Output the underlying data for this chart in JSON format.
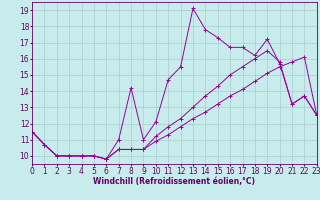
{
  "xlabel": "Windchill (Refroidissement éolien,°C)",
  "bg_color": "#c8ecec",
  "line_color": "#990099",
  "grid_color": "#aacccc",
  "axis_color": "#660066",
  "xlim": [
    0,
    23
  ],
  "ylim": [
    9.5,
    19.5
  ],
  "xticks": [
    0,
    1,
    2,
    3,
    4,
    5,
    6,
    7,
    8,
    9,
    10,
    11,
    12,
    13,
    14,
    15,
    16,
    17,
    18,
    19,
    20,
    21,
    22,
    23
  ],
  "yticks": [
    10,
    11,
    12,
    13,
    14,
    15,
    16,
    17,
    18,
    19
  ],
  "series1_x": [
    0,
    1,
    2,
    3,
    4,
    5,
    6,
    7,
    8,
    9,
    10,
    11,
    12,
    13,
    14,
    15,
    16,
    17,
    18,
    19,
    20,
    21,
    22,
    23
  ],
  "series1_y": [
    11.5,
    10.7,
    10.0,
    10.0,
    10.0,
    10.0,
    9.8,
    11.0,
    14.2,
    11.0,
    12.1,
    14.7,
    15.5,
    19.1,
    17.8,
    17.3,
    16.7,
    16.7,
    16.2,
    17.2,
    15.7,
    13.2,
    13.7,
    12.5
  ],
  "series2_x": [
    0,
    1,
    2,
    3,
    4,
    5,
    6,
    7,
    8,
    9,
    10,
    11,
    12,
    13,
    14,
    15,
    16,
    17,
    18,
    19,
    20,
    21,
    22,
    23
  ],
  "series2_y": [
    11.5,
    10.7,
    10.0,
    10.0,
    10.0,
    10.0,
    9.8,
    10.4,
    10.4,
    10.4,
    11.2,
    11.8,
    12.3,
    13.0,
    13.7,
    14.3,
    15.0,
    15.5,
    16.0,
    16.5,
    15.8,
    13.2,
    13.7,
    12.5
  ],
  "series3_x": [
    0,
    1,
    2,
    3,
    4,
    5,
    6,
    7,
    8,
    9,
    10,
    11,
    12,
    13,
    14,
    15,
    16,
    17,
    18,
    19,
    20,
    21,
    22,
    23
  ],
  "series3_y": [
    11.5,
    10.7,
    10.0,
    10.0,
    10.0,
    10.0,
    9.8,
    10.4,
    10.4,
    10.4,
    10.9,
    11.3,
    11.8,
    12.3,
    12.7,
    13.2,
    13.7,
    14.1,
    14.6,
    15.1,
    15.5,
    15.8,
    16.1,
    12.5
  ],
  "font_size": 5.5,
  "label_size": 5.5,
  "marker": "+",
  "marker_size": 3,
  "linewidth": 0.7
}
